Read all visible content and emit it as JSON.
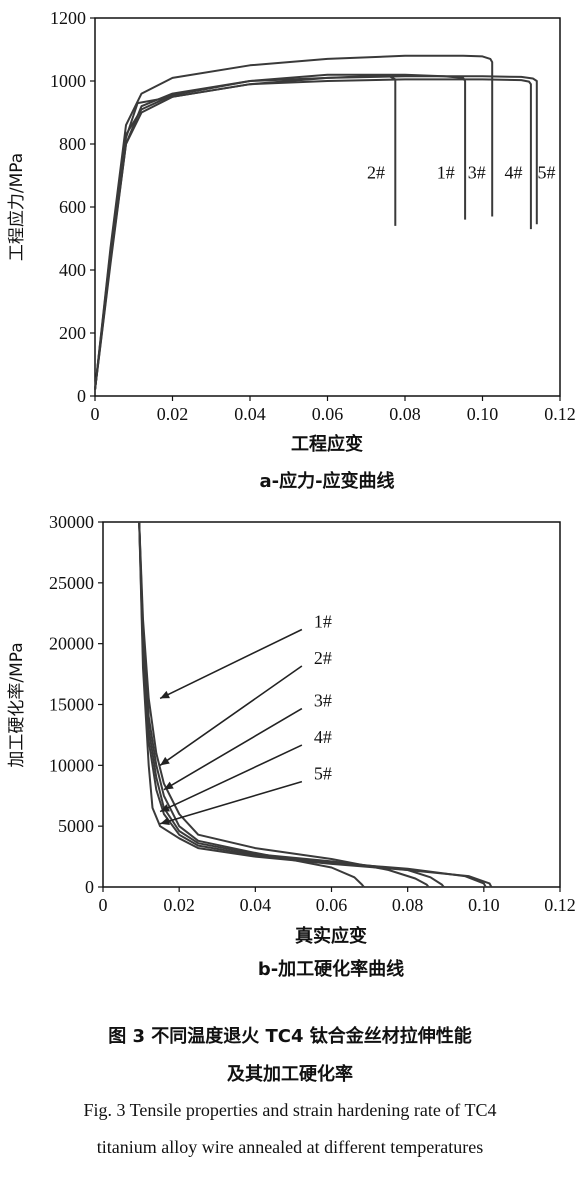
{
  "chart_data": [
    {
      "type": "line",
      "xlabel": "工程应变",
      "ylabel": "工程应力/MPa",
      "caption": "a-应力-应变曲线",
      "xlim": [
        0,
        0.12
      ],
      "ylim": [
        0,
        1200
      ],
      "xticks": [
        0,
        0.02,
        0.04,
        0.06,
        0.08,
        0.1,
        0.12
      ],
      "yticks": [
        0,
        200,
        400,
        600,
        800,
        1000,
        1200
      ],
      "xtick_labels": [
        "0",
        "0.02",
        "0.04",
        "0.06",
        "0.08",
        "0.10",
        "0.12"
      ],
      "ytick_labels": [
        "0",
        "200",
        "400",
        "600",
        "800",
        "1000",
        "1200"
      ],
      "series": [
        {
          "name": "1#",
          "x": [
            0,
            0.004,
            0.008,
            0.012,
            0.02,
            0.04,
            0.06,
            0.08,
            0.09,
            0.095,
            0.0955,
            0.0955
          ],
          "y": [
            20,
            420,
            800,
            920,
            960,
            1000,
            1020,
            1020,
            1015,
            1010,
            1000,
            560
          ]
        },
        {
          "name": "2#",
          "x": [
            0,
            0.004,
            0.008,
            0.011,
            0.02,
            0.04,
            0.06,
            0.07,
            0.076,
            0.0775,
            0.0775
          ],
          "y": [
            20,
            450,
            820,
            930,
            950,
            990,
            1010,
            1015,
            1015,
            1005,
            540
          ]
        },
        {
          "name": "3#",
          "x": [
            0,
            0.004,
            0.008,
            0.012,
            0.02,
            0.04,
            0.06,
            0.08,
            0.095,
            0.1,
            0.102,
            0.1025,
            0.1025
          ],
          "y": [
            20,
            470,
            860,
            960,
            1010,
            1050,
            1070,
            1080,
            1080,
            1078,
            1070,
            1060,
            570
          ]
        },
        {
          "name": "4#",
          "x": [
            0,
            0.004,
            0.008,
            0.012,
            0.02,
            0.04,
            0.06,
            0.08,
            0.1,
            0.11,
            0.112,
            0.1125,
            0.1125
          ],
          "y": [
            20,
            430,
            800,
            900,
            950,
            990,
            1000,
            1005,
            1005,
            1003,
            998,
            990,
            530
          ]
        },
        {
          "name": "5#",
          "x": [
            0,
            0.004,
            0.008,
            0.012,
            0.02,
            0.04,
            0.06,
            0.08,
            0.1,
            0.11,
            0.113,
            0.114,
            0.114
          ],
          "y": [
            20,
            460,
            830,
            910,
            955,
            1000,
            1010,
            1015,
            1015,
            1013,
            1008,
            1000,
            545
          ]
        }
      ],
      "labels": [
        "2#",
        "1#",
        "3#",
        "4#",
        "5#"
      ]
    },
    {
      "type": "line",
      "xlabel": "真实应变",
      "ylabel": "加工硬化率/MPa",
      "caption": "b-加工硬化率曲线",
      "xlim": [
        0,
        0.12
      ],
      "ylim": [
        0,
        30000
      ],
      "xticks": [
        0,
        0.02,
        0.04,
        0.06,
        0.08,
        0.1,
        0.12
      ],
      "yticks": [
        0,
        5000,
        10000,
        15000,
        20000,
        25000,
        30000
      ],
      "xtick_labels": [
        "0",
        "0.02",
        "0.04",
        "0.06",
        "0.08",
        "0.10",
        "0.12"
      ],
      "ytick_labels": [
        "0",
        "5000",
        "10000",
        "15000",
        "20000",
        "25000",
        "30000"
      ],
      "series": [
        {
          "name": "1#",
          "x": [
            0.0095,
            0.0105,
            0.012,
            0.014,
            0.016,
            0.02,
            0.025,
            0.04,
            0.06,
            0.075,
            0.082,
            0.085,
            0.0855
          ],
          "y": [
            30000,
            22000,
            15500,
            11000,
            8500,
            6000,
            4300,
            3200,
            2300,
            1400,
            700,
            200,
            0
          ]
        },
        {
          "name": "2#",
          "x": [
            0.0095,
            0.0105,
            0.012,
            0.014,
            0.016,
            0.02,
            0.025,
            0.04,
            0.05,
            0.06,
            0.066,
            0.068,
            0.0685
          ],
          "y": [
            30000,
            21000,
            14000,
            10000,
            7500,
            5000,
            3800,
            2800,
            2200,
            1600,
            800,
            200,
            0
          ]
        },
        {
          "name": "3#",
          "x": [
            0.0095,
            0.0105,
            0.012,
            0.014,
            0.016,
            0.02,
            0.025,
            0.04,
            0.06,
            0.08,
            0.086,
            0.089,
            0.0895
          ],
          "y": [
            30000,
            20000,
            13000,
            9000,
            6500,
            4600,
            3600,
            2700,
            2100,
            1400,
            800,
            200,
            0
          ]
        },
        {
          "name": "4#",
          "x": [
            0.0095,
            0.0105,
            0.012,
            0.014,
            0.016,
            0.02,
            0.025,
            0.04,
            0.06,
            0.08,
            0.095,
            0.1,
            0.1005
          ],
          "y": [
            30000,
            19000,
            12000,
            8000,
            6000,
            4300,
            3400,
            2600,
            2000,
            1500,
            900,
            300,
            0
          ]
        },
        {
          "name": "5#",
          "x": [
            0.0095,
            0.0105,
            0.012,
            0.013,
            0.015,
            0.02,
            0.025,
            0.04,
            0.06,
            0.08,
            0.096,
            0.1015,
            0.102
          ],
          "y": [
            30000,
            18000,
            10000,
            6500,
            5000,
            4000,
            3200,
            2500,
            1900,
            1400,
            900,
            300,
            0
          ]
        }
      ],
      "annotations": [
        {
          "text": "1#",
          "x": 0.0475,
          "y": 21000,
          "ax": 0.015,
          "ay": 15500
        },
        {
          "text": "2#",
          "x": 0.0475,
          "y": 18000,
          "ax": 0.015,
          "ay": 10000
        },
        {
          "text": "3#",
          "x": 0.0475,
          "y": 14500,
          "ax": 0.016,
          "ay": 8000
        },
        {
          "text": "4#",
          "x": 0.0475,
          "y": 11500,
          "ax": 0.015,
          "ay": 6200
        },
        {
          "text": "5#",
          "x": 0.0475,
          "y": 8500,
          "ax": 0.015,
          "ay": 5200
        }
      ]
    }
  ],
  "caption": {
    "cn_line1": "图 3   不同温度退火 TC4 钛合金丝材拉伸性能",
    "cn_line2": "及其加工硬化率",
    "en_line1": "Fig. 3 Tensile properties and strain hardening rate of TC4",
    "en_line2": "titanium alloy wire annealed at different temperatures"
  }
}
